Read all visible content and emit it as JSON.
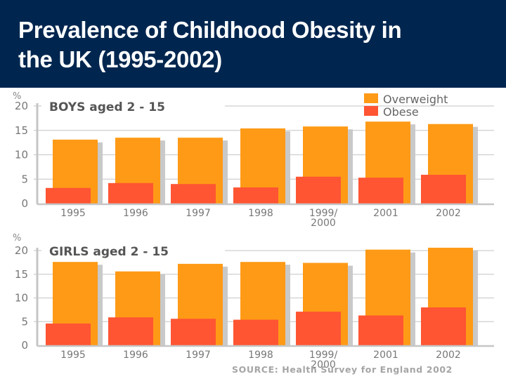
{
  "header": {
    "title_line1": "Prevalence of Childhood Obesity in",
    "title_line2": "the UK (1995-2002)"
  },
  "colors": {
    "header_bg": "#00264f",
    "overweight": "#ff9a16",
    "obese": "#ff5533",
    "shadow": "#c9c9c9",
    "grid": "#cfcfcf"
  },
  "legend": {
    "overweight": "Overweight",
    "obese": "Obese"
  },
  "source": "SOURCE:  Health Survey for England 2002",
  "chart_data": [
    {
      "type": "bar",
      "title": "BOYS aged 2 - 15",
      "ylabel": "%",
      "xlabel": "",
      "ylim": [
        0,
        20
      ],
      "yticks": [
        0,
        5,
        10,
        15,
        20
      ],
      "grid": true,
      "legend": "top-right",
      "categories": [
        "1995",
        "1996",
        "1997",
        "1998",
        "1999/\n2000",
        "2001",
        "2002"
      ],
      "series": [
        {
          "name": "Overweight",
          "values": [
            13.1,
            13.5,
            13.5,
            15.4,
            15.8,
            16.8,
            16.3
          ]
        },
        {
          "name": "Obese",
          "values": [
            3.2,
            4.2,
            4.0,
            3.3,
            5.5,
            5.3,
            5.9
          ]
        }
      ]
    },
    {
      "type": "bar",
      "title": "GIRLS aged 2 - 15",
      "ylabel": "%",
      "xlabel": "",
      "ylim": [
        0,
        20
      ],
      "yticks": [
        0,
        5,
        10,
        15,
        20
      ],
      "grid": true,
      "categories": [
        "1995",
        "1996",
        "1997",
        "1998",
        "1999/\n2000",
        "2001",
        "2002"
      ],
      "series": [
        {
          "name": "Overweight",
          "values": [
            17.6,
            15.6,
            17.2,
            17.6,
            17.4,
            20.2,
            20.6
          ]
        },
        {
          "name": "Obese",
          "values": [
            4.6,
            5.9,
            5.6,
            5.4,
            7.1,
            6.3,
            8.0
          ]
        }
      ]
    }
  ]
}
